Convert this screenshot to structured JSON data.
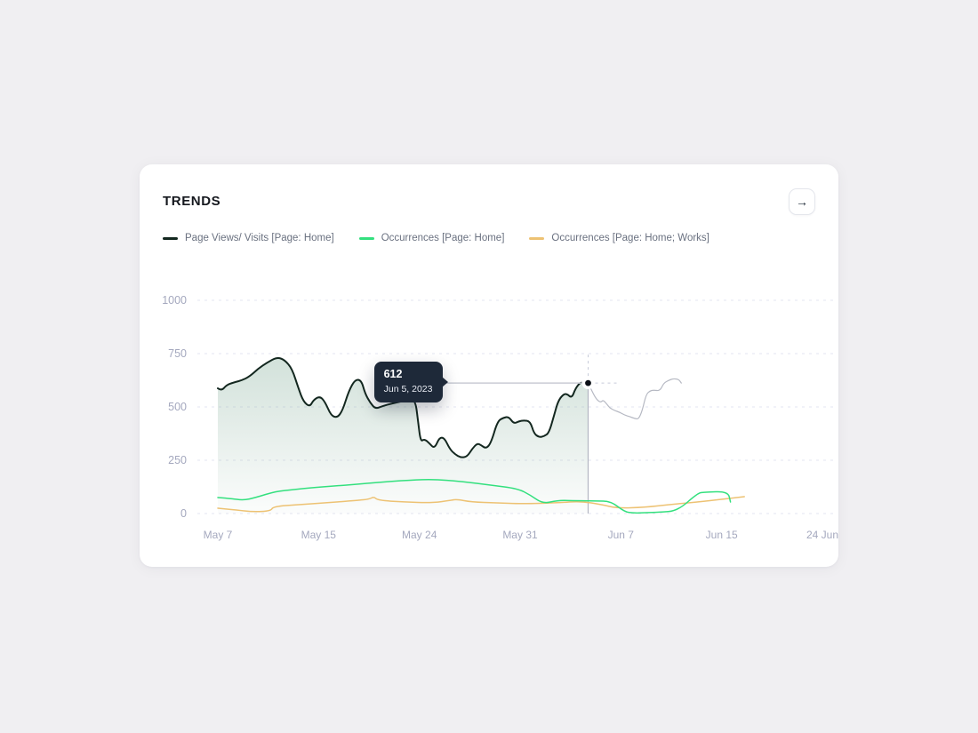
{
  "card": {
    "title": "TRENDS",
    "action_icon": "→"
  },
  "legend": {
    "items": [
      {
        "label": "Page Views/ Visits [Page: Home]",
        "color": "#13271f"
      },
      {
        "label": "Occurrences [Page: Home]",
        "color": "#33e07e"
      },
      {
        "label": "Occurrences [Page: Home; Works]",
        "color": "#edc273"
      }
    ]
  },
  "tooltip": {
    "value": "612",
    "date": "Jun 5, 2023"
  },
  "colors": {
    "page_bg": "#f0eff2",
    "card_bg": "#ffffff",
    "grid_line": "#e3e5f1",
    "tick_text": "#a4a8be",
    "crosshair_solid": "#b3b6c2",
    "crosshair_dashed": "#c7cbd9",
    "connector": "#c9ccd4",
    "tooltip_bg": "#1e2939",
    "after_hover_line": "#b6b9c3",
    "area_tint": "#89b19e"
  },
  "chart_data": {
    "type": "line",
    "title": "TRENDS",
    "x_axis": {
      "tick_labels": [
        "May 7",
        "May 15",
        "May 24",
        "May 31",
        "Jun 7",
        "Jun 15",
        "24 Jun"
      ],
      "domain_days": [
        0,
        48
      ],
      "start_date": "May 7, 2023"
    },
    "y_axis": {
      "ticks": [
        0,
        250,
        500,
        750,
        1000
      ],
      "ylim": [
        0,
        1000
      ]
    },
    "grid": "horizontal dashed",
    "legend_position": "top",
    "hover_point": {
      "day": 29.4,
      "value": 612,
      "date": "Jun 5, 2023"
    },
    "series": [
      {
        "name": "Page Views/ Visits [Page: Home]",
        "segment": "up to hover point",
        "color": "#13271f",
        "area": true,
        "points": [
          [
            0,
            587
          ],
          [
            0.3,
            575
          ],
          [
            0.7,
            604
          ],
          [
            1.4,
            617
          ],
          [
            1.9,
            625
          ],
          [
            2.5,
            642
          ],
          [
            3.2,
            679
          ],
          [
            3.9,
            708
          ],
          [
            4.7,
            733
          ],
          [
            5.3,
            721
          ],
          [
            5.9,
            679
          ],
          [
            6.4,
            587
          ],
          [
            6.8,
            525
          ],
          [
            7.3,
            500
          ],
          [
            7.6,
            533
          ],
          [
            8.1,
            550
          ],
          [
            8.5,
            525
          ],
          [
            9.0,
            458
          ],
          [
            9.5,
            450
          ],
          [
            9.9,
            483
          ],
          [
            10.4,
            575
          ],
          [
            10.9,
            629
          ],
          [
            11.4,
            625
          ],
          [
            11.7,
            562
          ],
          [
            12.1,
            520
          ],
          [
            12.5,
            491
          ],
          [
            13.1,
            504
          ],
          [
            13.8,
            516
          ],
          [
            14.5,
            525
          ],
          [
            15.2,
            533
          ],
          [
            15.7,
            529
          ],
          [
            15.9,
            429
          ],
          [
            16.1,
            337
          ],
          [
            16.4,
            350
          ],
          [
            16.8,
            329
          ],
          [
            17.2,
            304
          ],
          [
            17.6,
            358
          ],
          [
            18.0,
            354
          ],
          [
            18.4,
            304
          ],
          [
            18.8,
            279
          ],
          [
            19.3,
            262
          ],
          [
            19.8,
            267
          ],
          [
            20.2,
            304
          ],
          [
            20.6,
            329
          ],
          [
            20.9,
            321
          ],
          [
            21.3,
            304
          ],
          [
            21.7,
            333
          ],
          [
            22.2,
            433
          ],
          [
            22.7,
            450
          ],
          [
            23.1,
            454
          ],
          [
            23.5,
            421
          ],
          [
            23.9,
            433
          ],
          [
            24.3,
            437
          ],
          [
            24.8,
            433
          ],
          [
            25.1,
            375
          ],
          [
            25.5,
            358
          ],
          [
            25.9,
            362
          ],
          [
            26.3,
            379
          ],
          [
            26.7,
            462
          ],
          [
            27.0,
            525
          ],
          [
            27.4,
            558
          ],
          [
            27.7,
            562
          ],
          [
            28.1,
            541
          ],
          [
            28.4,
            587
          ],
          [
            28.8,
            617
          ],
          [
            29.1,
            608
          ],
          [
            29.4,
            612
          ]
        ]
      },
      {
        "name": "Page Views/ Visits [Page: Home]",
        "segment": "after hover point",
        "color": "#b6b9c3",
        "area": false,
        "points": [
          [
            29.4,
            612
          ],
          [
            29.8,
            562
          ],
          [
            30.1,
            533
          ],
          [
            30.4,
            521
          ],
          [
            30.6,
            533
          ],
          [
            30.9,
            512
          ],
          [
            31.1,
            496
          ],
          [
            31.5,
            483
          ],
          [
            31.9,
            475
          ],
          [
            32.3,
            462
          ],
          [
            32.7,
            454
          ],
          [
            33.1,
            446
          ],
          [
            33.4,
            442
          ],
          [
            33.7,
            483
          ],
          [
            34.0,
            558
          ],
          [
            34.3,
            575
          ],
          [
            34.6,
            579
          ],
          [
            35.1,
            575
          ],
          [
            35.4,
            612
          ],
          [
            35.8,
            625
          ],
          [
            36.2,
            633
          ],
          [
            36.6,
            629
          ],
          [
            36.8,
            612
          ]
        ]
      },
      {
        "name": "Occurrences [Page: Home]",
        "color": "#33e07e",
        "area": false,
        "points": [
          [
            0,
            75
          ],
          [
            1,
            71
          ],
          [
            2,
            62
          ],
          [
            3,
            75
          ],
          [
            4.6,
            104
          ],
          [
            6,
            112
          ],
          [
            7.4,
            121
          ],
          [
            9.2,
            129
          ],
          [
            11,
            137
          ],
          [
            12.7,
            146
          ],
          [
            14.5,
            154
          ],
          [
            17,
            162
          ],
          [
            19.4,
            150
          ],
          [
            21.7,
            133
          ],
          [
            23.8,
            117
          ],
          [
            24.8,
            87
          ],
          [
            25.8,
            46
          ],
          [
            27,
            62
          ],
          [
            28,
            61
          ],
          [
            30,
            59
          ],
          [
            31.2,
            58
          ],
          [
            32.3,
            8
          ],
          [
            33,
            2
          ],
          [
            34,
            4
          ],
          [
            35,
            6
          ],
          [
            36.5,
            12
          ],
          [
            38.1,
            96
          ],
          [
            38.6,
            100
          ],
          [
            40.5,
            104
          ],
          [
            40.7,
            54
          ]
        ]
      },
      {
        "name": "Occurrences [Page: Home; Works]",
        "color": "#edc273",
        "area": false,
        "points": [
          [
            0,
            25
          ],
          [
            1.4,
            17
          ],
          [
            2.8,
            8
          ],
          [
            4.2,
            12
          ],
          [
            4.4,
            33
          ],
          [
            6.4,
            42
          ],
          [
            8.5,
            50
          ],
          [
            11.1,
            62
          ],
          [
            12,
            67
          ],
          [
            12.4,
            79
          ],
          [
            12.7,
            62
          ],
          [
            14.8,
            54
          ],
          [
            17,
            50
          ],
          [
            18.5,
            62
          ],
          [
            19,
            67
          ],
          [
            20.1,
            54
          ],
          [
            22.2,
            50
          ],
          [
            24.1,
            46
          ],
          [
            27,
            50
          ],
          [
            28.8,
            58
          ],
          [
            30.5,
            42
          ],
          [
            31.7,
            25
          ],
          [
            33.9,
            29
          ],
          [
            35.8,
            42
          ],
          [
            38.1,
            54
          ],
          [
            40,
            67
          ],
          [
            41.8,
            79
          ]
        ]
      }
    ]
  }
}
